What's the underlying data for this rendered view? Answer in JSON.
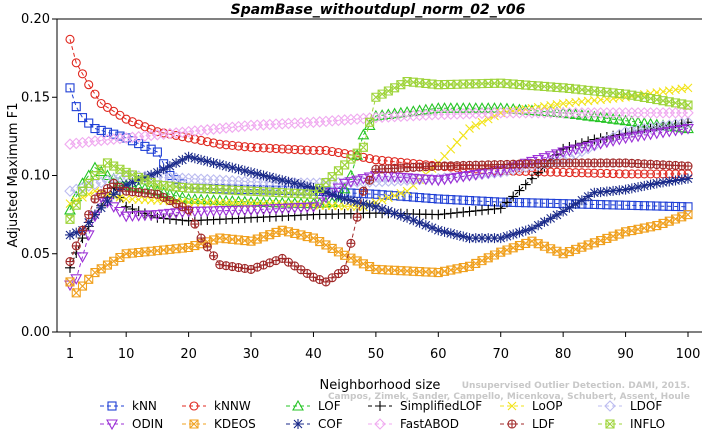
{
  "chart_data": {
    "type": "line",
    "title": "SpamBase_withoutdupl_norm_02_v06",
    "xlabel": "Neighborhood size",
    "ylabel": "Adjusted Maximum F1",
    "xlim": [
      1,
      100
    ],
    "ylim": [
      0,
      0.2
    ],
    "xticks": [
      1,
      10,
      20,
      30,
      40,
      50,
      60,
      70,
      80,
      90,
      100
    ],
    "yticks": [
      "0.00",
      "0.05",
      "0.10",
      "0.15",
      "0.20"
    ],
    "grid": false,
    "legend_position": "bottom",
    "watermark": [
      "Campos, Zimek, Sander, Campello, Micenkova, Schubert, Assent, Houle",
      "Unsupervised Outlier Detection. DAMI, 2015."
    ],
    "series": [
      {
        "name": "kNN",
        "color": "#1f3fd6",
        "marker": "square",
        "dashed": true,
        "points": [
          [
            1,
            0.156
          ],
          [
            2,
            0.144
          ],
          [
            3,
            0.137
          ],
          [
            5,
            0.13
          ],
          [
            10,
            0.124
          ],
          [
            15,
            0.115
          ],
          [
            17,
            0.1
          ],
          [
            20,
            0.092
          ],
          [
            30,
            0.091
          ],
          [
            40,
            0.09
          ],
          [
            50,
            0.088
          ],
          [
            60,
            0.085
          ],
          [
            70,
            0.083
          ],
          [
            80,
            0.082
          ],
          [
            90,
            0.081
          ],
          [
            100,
            0.08
          ]
        ]
      },
      {
        "name": "kNNW",
        "color": "#e0281f",
        "marker": "circle",
        "dashed": true,
        "points": [
          [
            1,
            0.187
          ],
          [
            2,
            0.172
          ],
          [
            4,
            0.158
          ],
          [
            6,
            0.146
          ],
          [
            10,
            0.136
          ],
          [
            15,
            0.128
          ],
          [
            20,
            0.124
          ],
          [
            25,
            0.12
          ],
          [
            30,
            0.118
          ],
          [
            40,
            0.116
          ],
          [
            42,
            0.116
          ],
          [
            45,
            0.114
          ],
          [
            50,
            0.11
          ],
          [
            60,
            0.106
          ],
          [
            70,
            0.103
          ],
          [
            80,
            0.102
          ],
          [
            90,
            0.101
          ],
          [
            100,
            0.101
          ]
        ]
      },
      {
        "name": "LOF",
        "color": "#25c425",
        "marker": "triangle-up",
        "dashed": true,
        "points": [
          [
            1,
            0.078
          ],
          [
            3,
            0.095
          ],
          [
            5,
            0.105
          ],
          [
            7,
            0.1
          ],
          [
            10,
            0.094
          ],
          [
            15,
            0.09
          ],
          [
            20,
            0.085
          ],
          [
            30,
            0.083
          ],
          [
            40,
            0.082
          ],
          [
            44,
            0.083
          ],
          [
            46,
            0.1
          ],
          [
            48,
            0.126
          ],
          [
            50,
            0.138
          ],
          [
            60,
            0.143
          ],
          [
            70,
            0.143
          ],
          [
            80,
            0.14
          ],
          [
            90,
            0.135
          ],
          [
            100,
            0.13
          ]
        ]
      },
      {
        "name": "SimplifiedLOF",
        "color": "#000000",
        "marker": "plus",
        "dashed": true,
        "points": [
          [
            1,
            0.041
          ],
          [
            3,
            0.06
          ],
          [
            5,
            0.075
          ],
          [
            8,
            0.092
          ],
          [
            10,
            0.08
          ],
          [
            15,
            0.073
          ],
          [
            20,
            0.071
          ],
          [
            30,
            0.073
          ],
          [
            40,
            0.075
          ],
          [
            50,
            0.076
          ],
          [
            60,
            0.075
          ],
          [
            70,
            0.079
          ],
          [
            75,
            0.098
          ],
          [
            80,
            0.117
          ],
          [
            85,
            0.123
          ],
          [
            90,
            0.127
          ],
          [
            95,
            0.131
          ],
          [
            100,
            0.134
          ]
        ]
      },
      {
        "name": "LoOP",
        "color": "#f2e318",
        "marker": "x",
        "dashed": true,
        "points": [
          [
            1,
            0.082
          ],
          [
            5,
            0.09
          ],
          [
            10,
            0.085
          ],
          [
            20,
            0.083
          ],
          [
            30,
            0.082
          ],
          [
            40,
            0.081
          ],
          [
            48,
            0.08
          ],
          [
            55,
            0.09
          ],
          [
            60,
            0.108
          ],
          [
            65,
            0.13
          ],
          [
            70,
            0.14
          ],
          [
            80,
            0.146
          ],
          [
            90,
            0.15
          ],
          [
            100,
            0.156
          ]
        ]
      },
      {
        "name": "LDOF",
        "color": "#bcbcf0",
        "marker": "diamond",
        "dashed": true,
        "points": [
          [
            1,
            0.09
          ],
          [
            10,
            0.1
          ],
          [
            20,
            0.098
          ],
          [
            30,
            0.096
          ],
          [
            40,
            0.095
          ],
          [
            50,
            0.096
          ],
          [
            60,
            0.098
          ],
          [
            70,
            0.102
          ],
          [
            80,
            0.11
          ],
          [
            90,
            0.128
          ],
          [
            100,
            0.134
          ]
        ]
      },
      {
        "name": "ODIN",
        "color": "#9b2fd6",
        "marker": "triangle-down",
        "dashed": true,
        "points": [
          [
            1,
            0.03
          ],
          [
            2,
            0.034
          ],
          [
            4,
            0.062
          ],
          [
            6,
            0.086
          ],
          [
            10,
            0.074
          ],
          [
            15,
            0.075
          ],
          [
            20,
            0.077
          ],
          [
            30,
            0.078
          ],
          [
            40,
            0.08
          ],
          [
            45,
            0.095
          ],
          [
            50,
            0.1
          ],
          [
            60,
            0.097
          ],
          [
            70,
            0.103
          ],
          [
            80,
            0.115
          ],
          [
            90,
            0.124
          ],
          [
            100,
            0.13
          ]
        ]
      },
      {
        "name": "KDEOS",
        "color": "#f0a01e",
        "marker": "square-x",
        "dashed": true,
        "points": [
          [
            1,
            0.032
          ],
          [
            2,
            0.025
          ],
          [
            5,
            0.038
          ],
          [
            10,
            0.05
          ],
          [
            15,
            0.052
          ],
          [
            20,
            0.054
          ],
          [
            25,
            0.06
          ],
          [
            30,
            0.058
          ],
          [
            35,
            0.065
          ],
          [
            40,
            0.06
          ],
          [
            45,
            0.049
          ],
          [
            50,
            0.04
          ],
          [
            60,
            0.038
          ],
          [
            65,
            0.042
          ],
          [
            70,
            0.051
          ],
          [
            75,
            0.058
          ],
          [
            80,
            0.05
          ],
          [
            85,
            0.057
          ],
          [
            90,
            0.064
          ],
          [
            95,
            0.068
          ],
          [
            100,
            0.075
          ]
        ]
      },
      {
        "name": "COF",
        "color": "#1a2a8a",
        "marker": "asterisk",
        "dashed": true,
        "points": [
          [
            1,
            0.062
          ],
          [
            3,
            0.065
          ],
          [
            5,
            0.075
          ],
          [
            8,
            0.088
          ],
          [
            10,
            0.094
          ],
          [
            15,
            0.102
          ],
          [
            20,
            0.112
          ],
          [
            25,
            0.107
          ],
          [
            30,
            0.102
          ],
          [
            35,
            0.097
          ],
          [
            40,
            0.092
          ],
          [
            45,
            0.085
          ],
          [
            50,
            0.08
          ],
          [
            55,
            0.073
          ],
          [
            60,
            0.065
          ],
          [
            65,
            0.06
          ],
          [
            70,
            0.06
          ],
          [
            75,
            0.066
          ],
          [
            80,
            0.077
          ],
          [
            85,
            0.089
          ],
          [
            90,
            0.091
          ],
          [
            95,
            0.095
          ],
          [
            100,
            0.098
          ]
        ]
      },
      {
        "name": "FastABOD",
        "color": "#f0aaf0",
        "marker": "diamond",
        "dashed": true,
        "points": [
          [
            1,
            0.12
          ],
          [
            5,
            0.122
          ],
          [
            10,
            0.124
          ],
          [
            20,
            0.128
          ],
          [
            30,
            0.132
          ],
          [
            40,
            0.134
          ],
          [
            50,
            0.137
          ],
          [
            60,
            0.139
          ],
          [
            70,
            0.14
          ],
          [
            80,
            0.14
          ],
          [
            90,
            0.14
          ],
          [
            100,
            0.14
          ]
        ]
      },
      {
        "name": "LDF",
        "color": "#a02828",
        "marker": "circle-plus",
        "dashed": true,
        "points": [
          [
            1,
            0.045
          ],
          [
            3,
            0.065
          ],
          [
            5,
            0.085
          ],
          [
            8,
            0.095
          ],
          [
            10,
            0.09
          ],
          [
            15,
            0.088
          ],
          [
            20,
            0.078
          ],
          [
            22,
            0.06
          ],
          [
            25,
            0.043
          ],
          [
            30,
            0.04
          ],
          [
            35,
            0.047
          ],
          [
            40,
            0.035
          ],
          [
            42,
            0.032
          ],
          [
            45,
            0.04
          ],
          [
            48,
            0.09
          ],
          [
            50,
            0.104
          ],
          [
            60,
            0.106
          ],
          [
            70,
            0.107
          ],
          [
            80,
            0.108
          ],
          [
            90,
            0.108
          ],
          [
            100,
            0.106
          ]
        ]
      },
      {
        "name": "INFLO",
        "color": "#9ed43a",
        "marker": "square-x",
        "dashed": true,
        "points": [
          [
            1,
            0.072
          ],
          [
            3,
            0.09
          ],
          [
            5,
            0.1
          ],
          [
            7,
            0.108
          ],
          [
            10,
            0.102
          ],
          [
            15,
            0.094
          ],
          [
            20,
            0.092
          ],
          [
            30,
            0.09
          ],
          [
            40,
            0.088
          ],
          [
            48,
            0.118
          ],
          [
            50,
            0.15
          ],
          [
            55,
            0.16
          ],
          [
            60,
            0.158
          ],
          [
            70,
            0.159
          ],
          [
            80,
            0.156
          ],
          [
            90,
            0.152
          ],
          [
            100,
            0.145
          ]
        ]
      }
    ]
  }
}
